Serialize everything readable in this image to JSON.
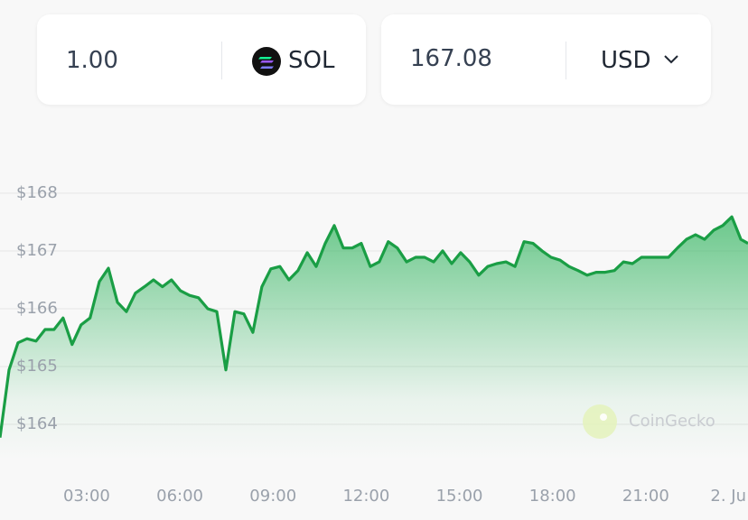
{
  "converter": {
    "amount": "1.00",
    "coin": "SOL",
    "result": "167.08",
    "currency": "USD"
  },
  "chart_data": {
    "type": "area",
    "watermark": "CoinGecko",
    "color": "#1a9e45",
    "grid": true,
    "xlim": [
      0.21,
      24.29
    ],
    "ylim": [
      163.375,
      168.53
    ],
    "xticks": [
      {
        "value": 3,
        "label": "03:00"
      },
      {
        "value": 6,
        "label": "06:00"
      },
      {
        "value": 9,
        "label": "09:00"
      },
      {
        "value": 12,
        "label": "12:00"
      },
      {
        "value": 15,
        "label": "15:00"
      },
      {
        "value": 18,
        "label": "18:00"
      },
      {
        "value": 21,
        "label": "21:00"
      },
      {
        "value": 24,
        "label": "2. Ju"
      }
    ],
    "yticks": [
      {
        "value": 164,
        "label": "$164"
      },
      {
        "value": 165,
        "label": "$165"
      },
      {
        "value": 166,
        "label": "$166"
      },
      {
        "value": 167,
        "label": "$167"
      },
      {
        "value": 168,
        "label": "$168"
      }
    ],
    "x": [
      0.21,
      0.5,
      0.79,
      1.08,
      1.37,
      1.66,
      1.95,
      2.24,
      2.53,
      2.82,
      3.11,
      3.41,
      3.7,
      3.99,
      4.28,
      4.57,
      4.86,
      5.15,
      5.44,
      5.73,
      6.02,
      6.31,
      6.6,
      6.9,
      7.19,
      7.48,
      7.77,
      8.06,
      8.35,
      8.64,
      8.93,
      9.22,
      9.51,
      9.8,
      10.1,
      10.39,
      10.68,
      10.97,
      11.26,
      11.55,
      11.84,
      12.13,
      12.42,
      12.71,
      13.0,
      13.3,
      13.59,
      13.88,
      14.17,
      14.46,
      14.75,
      15.04,
      15.33,
      15.62,
      15.91,
      16.2,
      16.5,
      16.79,
      17.08,
      17.37,
      17.66,
      17.95,
      18.24,
      18.53,
      18.82,
      19.11,
      19.4,
      19.69,
      19.99,
      20.28,
      20.57,
      20.86,
      21.15,
      21.44,
      21.73,
      22.02,
      22.31,
      22.6,
      22.89,
      23.19,
      23.48,
      23.77,
      24.06,
      24.29
    ],
    "values": [
      163.77,
      164.94,
      165.41,
      165.48,
      165.44,
      165.64,
      165.64,
      165.84,
      165.38,
      165.72,
      165.84,
      166.47,
      166.7,
      166.11,
      165.95,
      166.27,
      166.38,
      166.5,
      166.38,
      166.5,
      166.31,
      166.23,
      166.19,
      166.0,
      165.95,
      164.94,
      165.95,
      165.91,
      165.59,
      166.38,
      166.69,
      166.73,
      166.5,
      166.66,
      166.97,
      166.73,
      167.13,
      167.44,
      167.05,
      167.05,
      167.13,
      166.73,
      166.81,
      167.16,
      167.05,
      166.81,
      166.89,
      166.89,
      166.81,
      167.0,
      166.78,
      166.97,
      166.81,
      166.58,
      166.73,
      166.78,
      166.81,
      166.73,
      167.16,
      167.13,
      167.0,
      166.89,
      166.84,
      166.73,
      166.66,
      166.58,
      166.63,
      166.63,
      166.66,
      166.81,
      166.78,
      166.89,
      166.89,
      166.89,
      166.89,
      167.05,
      167.2,
      167.28,
      167.2,
      167.36,
      167.44,
      167.59,
      167.2,
      167.13
    ]
  }
}
